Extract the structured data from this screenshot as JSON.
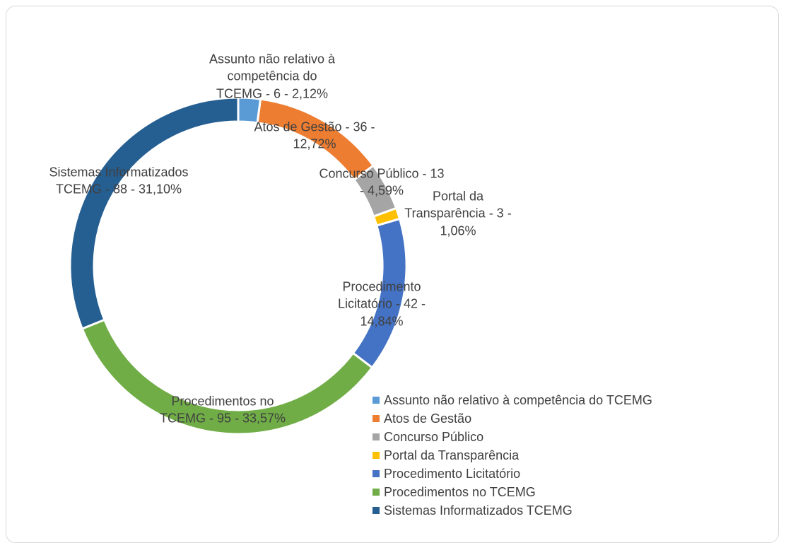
{
  "chart_data": {
    "type": "donut",
    "categories": [
      "Assunto não relativo à competência do TCEMG",
      "Atos de Gestão",
      "Concurso Público",
      "Portal da Transparência",
      "Procedimento Licitatório",
      "Procedimentos no TCEMG",
      "Sistemas Informatizados TCEMG"
    ],
    "values": [
      6,
      36,
      13,
      3,
      42,
      95,
      88
    ],
    "value_labels": [
      "Assunto não relativo à competência do TCEMG - 6 - 2,12%",
      "Atos de Gestão - 36 - 12,72%",
      "Concurso Público - 13 - 4,59%",
      "Portal da Transparência - 3 - 1,06%",
      "Procedimento Licitatório - 42 - 14,84%",
      "Procedimentos no TCEMG - 95 - 33,57%",
      "Sistemas Informatizados TCEMG - 88 - 31,10%"
    ],
    "colors": [
      "#5b9bd5",
      "#ed7d31",
      "#a5a5a5",
      "#ffc000",
      "#4472c4",
      "#70ad47",
      "#255e91"
    ],
    "legend": "bottom-right"
  }
}
